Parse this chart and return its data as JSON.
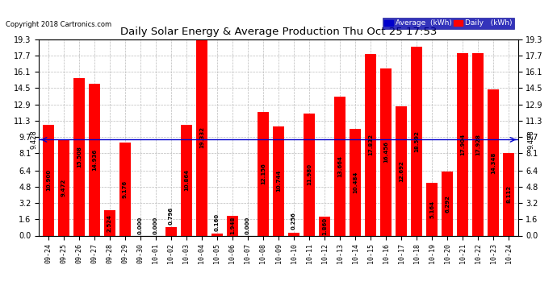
{
  "title": "Daily Solar Energy & Average Production Thu Oct 25 17:53",
  "copyright": "Copyright 2018 Cartronics.com",
  "categories": [
    "09-24",
    "09-25",
    "09-26",
    "09-27",
    "09-28",
    "09-29",
    "09-30",
    "10-01",
    "10-02",
    "10-03",
    "10-04",
    "10-05",
    "10-06",
    "10-07",
    "10-08",
    "10-09",
    "10-10",
    "10-11",
    "10-12",
    "10-13",
    "10-14",
    "10-15",
    "10-16",
    "10-17",
    "10-18",
    "10-19",
    "10-20",
    "10-21",
    "10-22",
    "10-23",
    "10-24"
  ],
  "values": [
    10.9,
    9.472,
    15.508,
    14.936,
    2.524,
    9.176,
    0.0,
    0.0,
    0.796,
    10.864,
    19.332,
    0.16,
    1.948,
    0.0,
    12.156,
    10.744,
    0.256,
    11.98,
    1.86,
    13.664,
    10.484,
    17.832,
    16.456,
    12.692,
    18.592,
    5.164,
    6.292,
    17.904,
    17.928,
    14.348,
    8.112
  ],
  "average": 9.428,
  "bar_color": "#ff0000",
  "average_line_color": "#0000cc",
  "ylim": [
    0,
    19.3
  ],
  "yticks": [
    0.0,
    1.6,
    3.2,
    4.8,
    6.4,
    8.1,
    9.7,
    11.3,
    12.9,
    14.5,
    16.1,
    17.7,
    19.3
  ],
  "background_color": "#ffffff",
  "grid_color": "#bbbbbb",
  "bar_width": 0.75,
  "legend_avg_color": "#0000cc",
  "legend_daily_color": "#ff0000"
}
